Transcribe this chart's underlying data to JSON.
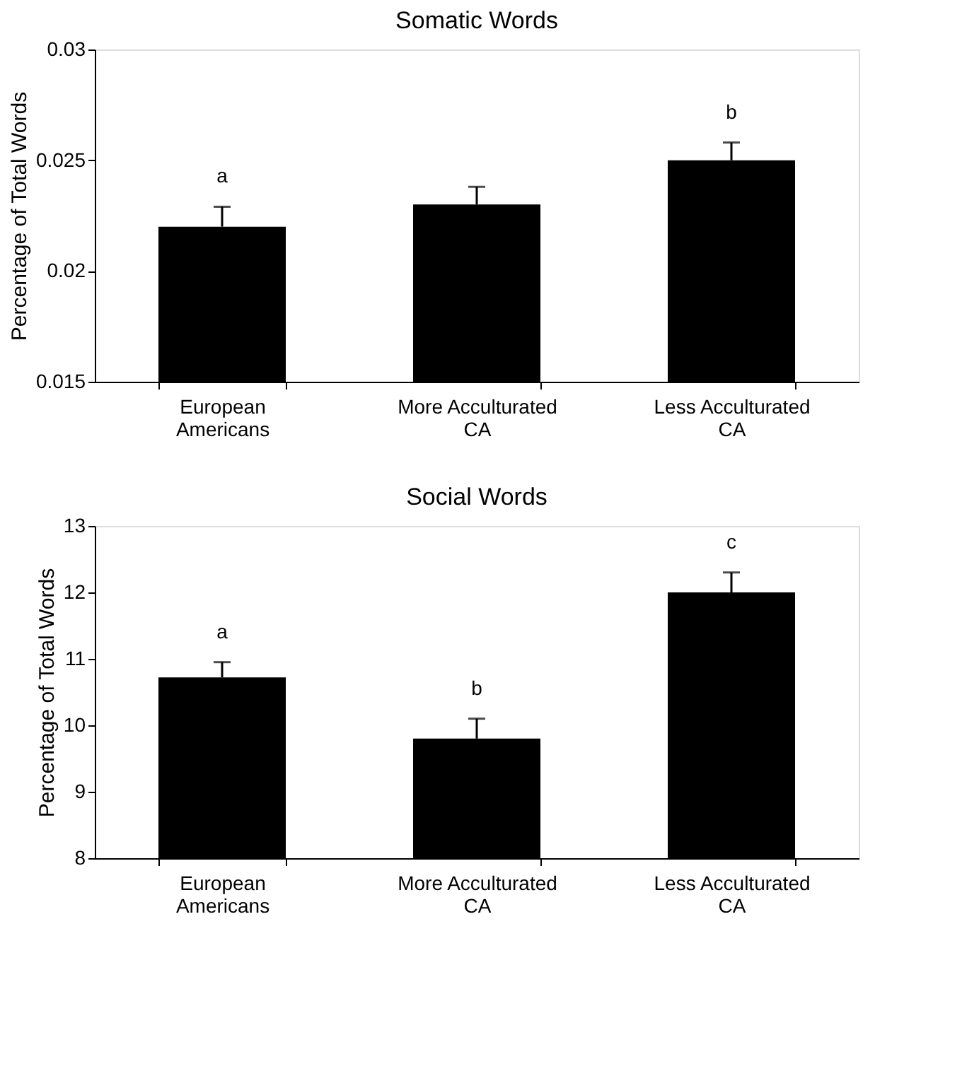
{
  "chart_data": [
    {
      "type": "bar",
      "title": "Somatic Words",
      "ylabel": "Percentage of Total Words",
      "categories": [
        "European\nAmericans",
        "More Acculturated\nCA",
        "Less Acculturated\nCA"
      ],
      "values": [
        0.022,
        0.023,
        0.025
      ],
      "color": "#000000",
      "errors": [
        [
          0.022,
          0.0229
        ],
        [
          0.023,
          0.0238
        ],
        [
          0.025,
          0.0258
        ]
      ],
      "value_labels": [
        "a",
        null,
        "b"
      ],
      "ylim": [
        0.015,
        0.03
      ],
      "yticks": [
        0.015,
        {
          "value": 0.02,
          "label": "0.02"
        },
        0.025,
        {
          "value": 0.03,
          "label": "0.03"
        }
      ],
      "grid": false
    },
    {
      "type": "bar",
      "title": "Social Words",
      "ylabel": "Percentage of Total Words",
      "categories": [
        "European\nAmericans",
        "More Acculturated\nCA",
        "Less Acculturated\nCA"
      ],
      "values": [
        10.72,
        9.8,
        12.0
      ],
      "color": "#000000",
      "errors": [
        [
          10.72,
          10.95
        ],
        [
          9.8,
          10.1
        ],
        [
          12.0,
          12.3
        ]
      ],
      "value_labels": [
        "a",
        "b",
        "c"
      ],
      "ylim": [
        8,
        13
      ],
      "yticks": [
        8,
        9,
        10,
        11,
        12,
        13
      ],
      "grid": false
    }
  ]
}
